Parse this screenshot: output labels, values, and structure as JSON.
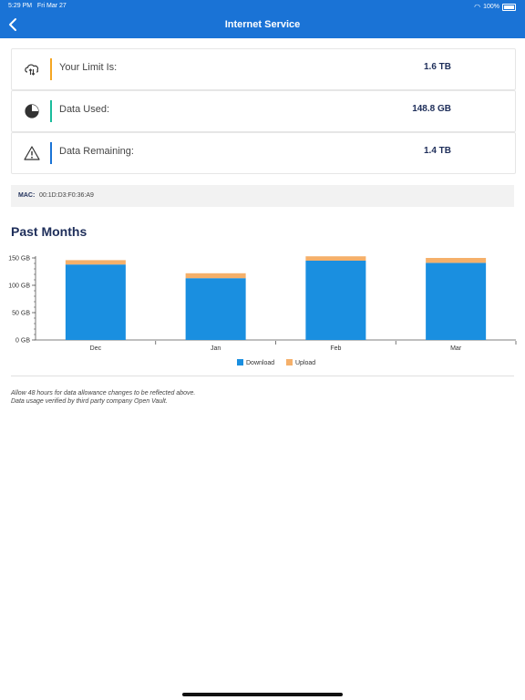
{
  "status": {
    "time": "5:29 PM",
    "date": "Fri Mar 27",
    "battery": "100%"
  },
  "header": {
    "title": "Internet Service"
  },
  "cards": [
    {
      "label": "Your Limit Is:",
      "value": "1.6 TB",
      "icon": "cloud-upload-download-icon",
      "accent": "#f5a623"
    },
    {
      "label": "Data Used:",
      "value": "148.8 GB",
      "icon": "pie-chart-icon",
      "accent": "#1abc9c"
    },
    {
      "label": "Data Remaining:",
      "value": "1.4 TB",
      "icon": "warning-icon",
      "accent": "#1a73d6"
    }
  ],
  "mac": {
    "label": "MAC:",
    "value": "00:1D:D3:F0:36:A9"
  },
  "section": {
    "title": "Past Months"
  },
  "chart_data": {
    "type": "bar",
    "stacked": true,
    "categories": [
      "Dec",
      "Jan",
      "Feb",
      "Mar"
    ],
    "series": [
      {
        "name": "Download",
        "color": "#1a8fe0",
        "values": [
          138,
          113,
          145,
          141
        ]
      },
      {
        "name": "Upload",
        "color": "#f5b06a",
        "values": [
          8,
          9,
          8,
          9
        ]
      }
    ],
    "yticks": [
      "0 GB",
      "50 GB",
      "100 GB",
      "150 GB"
    ],
    "ylim": [
      0,
      150
    ],
    "legend": "bottom"
  },
  "notes": [
    "Allow 48 hours for data allowance changes to be reflected above.",
    "Data usage verified by third party company Open Vault."
  ]
}
